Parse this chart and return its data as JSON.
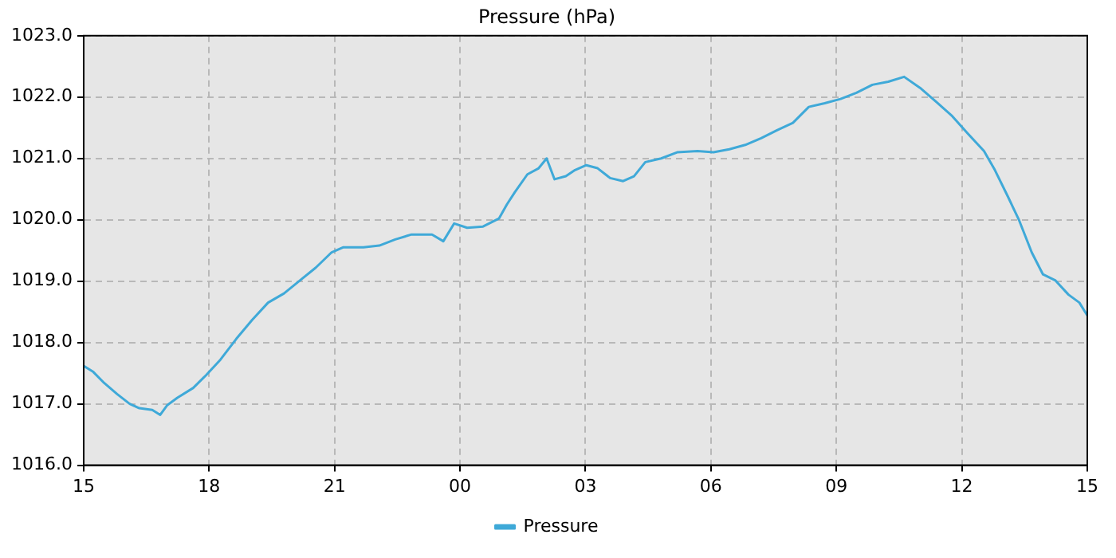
{
  "chart_data": {
    "type": "line",
    "title": "Pressure (hPa)",
    "x": [
      15,
      15.23,
      15.49,
      15.8,
      16.1,
      16.33,
      16.64,
      16.83,
      17,
      17.24,
      17.62,
      17.93,
      18.27,
      18.65,
      19.03,
      19.41,
      19.79,
      20.17,
      20.55,
      20.93,
      21.2,
      21.69,
      22.07,
      22.45,
      22.84,
      23.33,
      23.6,
      23.86,
      24.17,
      24.55,
      24.93,
      25.12,
      25.31,
      25.61,
      25.88,
      26.07,
      26.26,
      26.53,
      26.75,
      27.02,
      27.29,
      27.59,
      27.9,
      28.16,
      28.43,
      28.81,
      29.19,
      29.68,
      30.06,
      30.44,
      30.82,
      31.2,
      31.58,
      31.96,
      32.34,
      32.72,
      33.1,
      33.48,
      33.86,
      34.24,
      34.62,
      35,
      35.39,
      35.77,
      36.15,
      36.53,
      36.79,
      37.1,
      37.37,
      37.67,
      37.94,
      38.24,
      38.55,
      38.81,
      39
    ],
    "series": [
      {
        "name": "Pressure",
        "color": "#3fa9d8",
        "values": [
          1017.62,
          1017.52,
          1017.34,
          1017.16,
          1017.0,
          1016.93,
          1016.9,
          1016.82,
          1016.98,
          1017.1,
          1017.26,
          1017.47,
          1017.72,
          1018.06,
          1018.37,
          1018.65,
          1018.8,
          1019.01,
          1019.22,
          1019.47,
          1019.55,
          1019.55,
          1019.58,
          1019.68,
          1019.76,
          1019.76,
          1019.65,
          1019.94,
          1019.87,
          1019.89,
          1020.02,
          1020.25,
          1020.45,
          1020.74,
          1020.84,
          1021.0,
          1020.66,
          1020.71,
          1020.81,
          1020.89,
          1020.84,
          1020.68,
          1020.63,
          1020.71,
          1020.94,
          1021.0,
          1021.1,
          1021.12,
          1021.1,
          1021.15,
          1021.22,
          1021.33,
          1021.46,
          1021.58,
          1021.84,
          1021.9,
          1021.97,
          1022.07,
          1022.2,
          1022.25,
          1022.33,
          1022.15,
          1021.92,
          1021.69,
          1021.4,
          1021.12,
          1020.81,
          1020.38,
          1019.99,
          1019.47,
          1019.11,
          1019.01,
          1018.78,
          1018.65,
          1018.44
        ]
      }
    ],
    "xlim": [
      15,
      39
    ],
    "xticks": [
      {
        "value": 15,
        "label": "15"
      },
      {
        "value": 18,
        "label": "18"
      },
      {
        "value": 21,
        "label": "21"
      },
      {
        "value": 24,
        "label": "00"
      },
      {
        "value": 27,
        "label": "03"
      },
      {
        "value": 30,
        "label": "06"
      },
      {
        "value": 33,
        "label": "09"
      },
      {
        "value": 36,
        "label": "12"
      },
      {
        "value": 39,
        "label": "15"
      }
    ],
    "ylim": [
      1016,
      1023
    ],
    "yticks": [
      {
        "value": 1016,
        "label": "1016.0"
      },
      {
        "value": 1017,
        "label": "1017.0"
      },
      {
        "value": 1018,
        "label": "1018.0"
      },
      {
        "value": 1019,
        "label": "1019.0"
      },
      {
        "value": 1020,
        "label": "1020.0"
      },
      {
        "value": 1021,
        "label": "1021.0"
      },
      {
        "value": 1022,
        "label": "1022.0"
      },
      {
        "value": 1023,
        "label": "1023.0"
      }
    ],
    "grid": true,
    "legend": "bottom",
    "marker": "none",
    "line_style": "solid"
  }
}
